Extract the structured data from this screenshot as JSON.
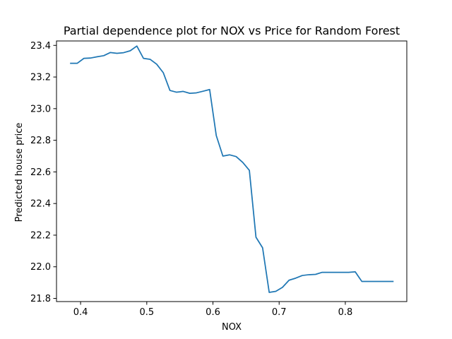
{
  "chart_data": {
    "type": "line",
    "title": "Partial dependence plot for NOX vs Price for Random Forest",
    "xlabel": "NOX",
    "ylabel": "Predicted house price",
    "xlim": [
      0.3636,
      0.8929
    ],
    "ylim": [
      21.78,
      23.428
    ],
    "xticks": [
      0.4,
      0.5,
      0.6,
      0.7,
      0.8
    ],
    "xtick_labels": [
      "0.4",
      "0.5",
      "0.6",
      "0.7",
      "0.8"
    ],
    "yticks": [
      21.8,
      22.0,
      22.2,
      22.4,
      22.6,
      22.8,
      23.0,
      23.2,
      23.4
    ],
    "ytick_labels": [
      "21.8",
      "22.0",
      "22.2",
      "22.4",
      "22.6",
      "22.8",
      "23.0",
      "23.2",
      "23.4"
    ],
    "grid": false,
    "line_color": "#1f77b4",
    "series": [
      {
        "x": [
          0.385,
          0.395,
          0.405,
          0.415,
          0.425,
          0.435,
          0.445,
          0.455,
          0.465,
          0.475,
          0.485,
          0.495,
          0.505,
          0.515,
          0.525,
          0.535,
          0.545,
          0.555,
          0.565,
          0.575,
          0.585,
          0.595,
          0.605,
          0.615,
          0.625,
          0.635,
          0.645,
          0.655,
          0.665,
          0.675,
          0.685,
          0.695,
          0.705,
          0.715,
          0.725,
          0.735,
          0.745,
          0.755,
          0.765,
          0.775,
          0.785,
          0.795,
          0.805,
          0.815,
          0.825,
          0.835,
          0.845,
          0.855,
          0.865,
          0.872
        ],
        "y": [
          23.287,
          23.287,
          23.318,
          23.32,
          23.328,
          23.335,
          23.355,
          23.35,
          23.354,
          23.366,
          23.396,
          23.318,
          23.312,
          23.281,
          23.227,
          23.115,
          23.104,
          23.109,
          23.097,
          23.1,
          23.11,
          23.121,
          22.83,
          22.7,
          22.708,
          22.697,
          22.66,
          22.61,
          22.187,
          22.12,
          21.838,
          21.845,
          21.87,
          21.915,
          21.928,
          21.945,
          21.95,
          21.952,
          21.965,
          21.965,
          21.965,
          21.965,
          21.965,
          21.968,
          21.907,
          21.907,
          21.907,
          21.907,
          21.907,
          21.907
        ]
      }
    ]
  }
}
